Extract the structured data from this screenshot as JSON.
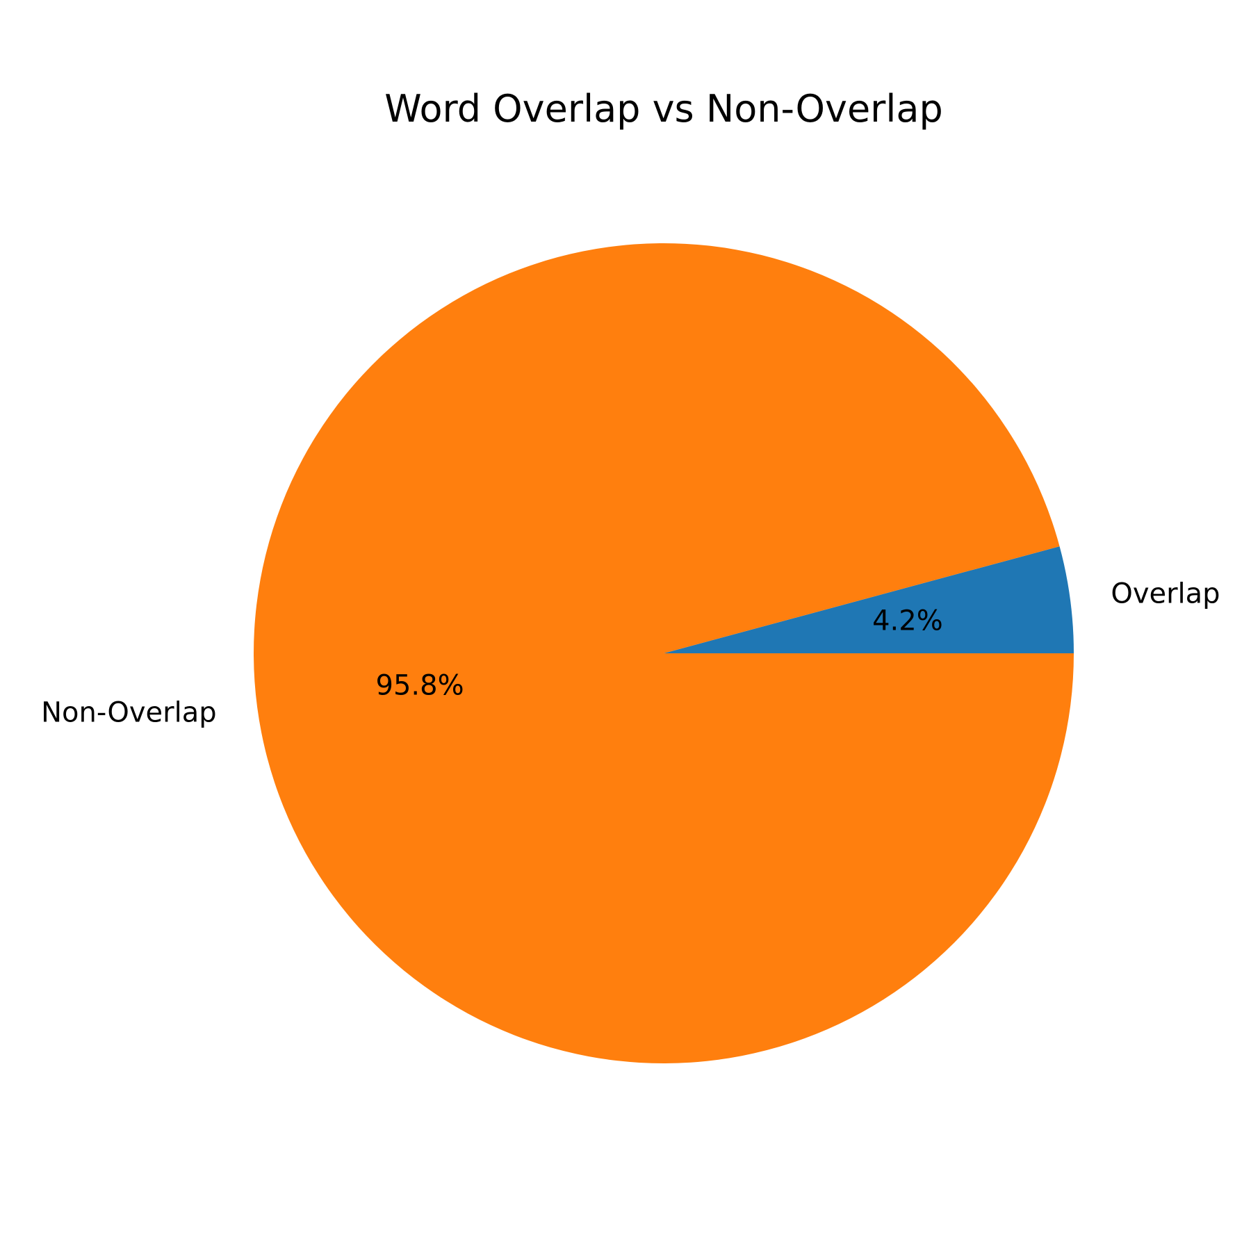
{
  "chart_data": {
    "type": "pie",
    "title": "Word Overlap vs Non-Overlap",
    "start_angle_deg": 0,
    "direction": "counterclockwise",
    "slices": [
      {
        "label": "Overlap",
        "value": 4.2,
        "pct_label": "4.2%",
        "color": "#1f77b4"
      },
      {
        "label": "Non-Overlap",
        "value": 95.8,
        "pct_label": "95.8%",
        "color": "#ff7f0e"
      }
    ]
  }
}
